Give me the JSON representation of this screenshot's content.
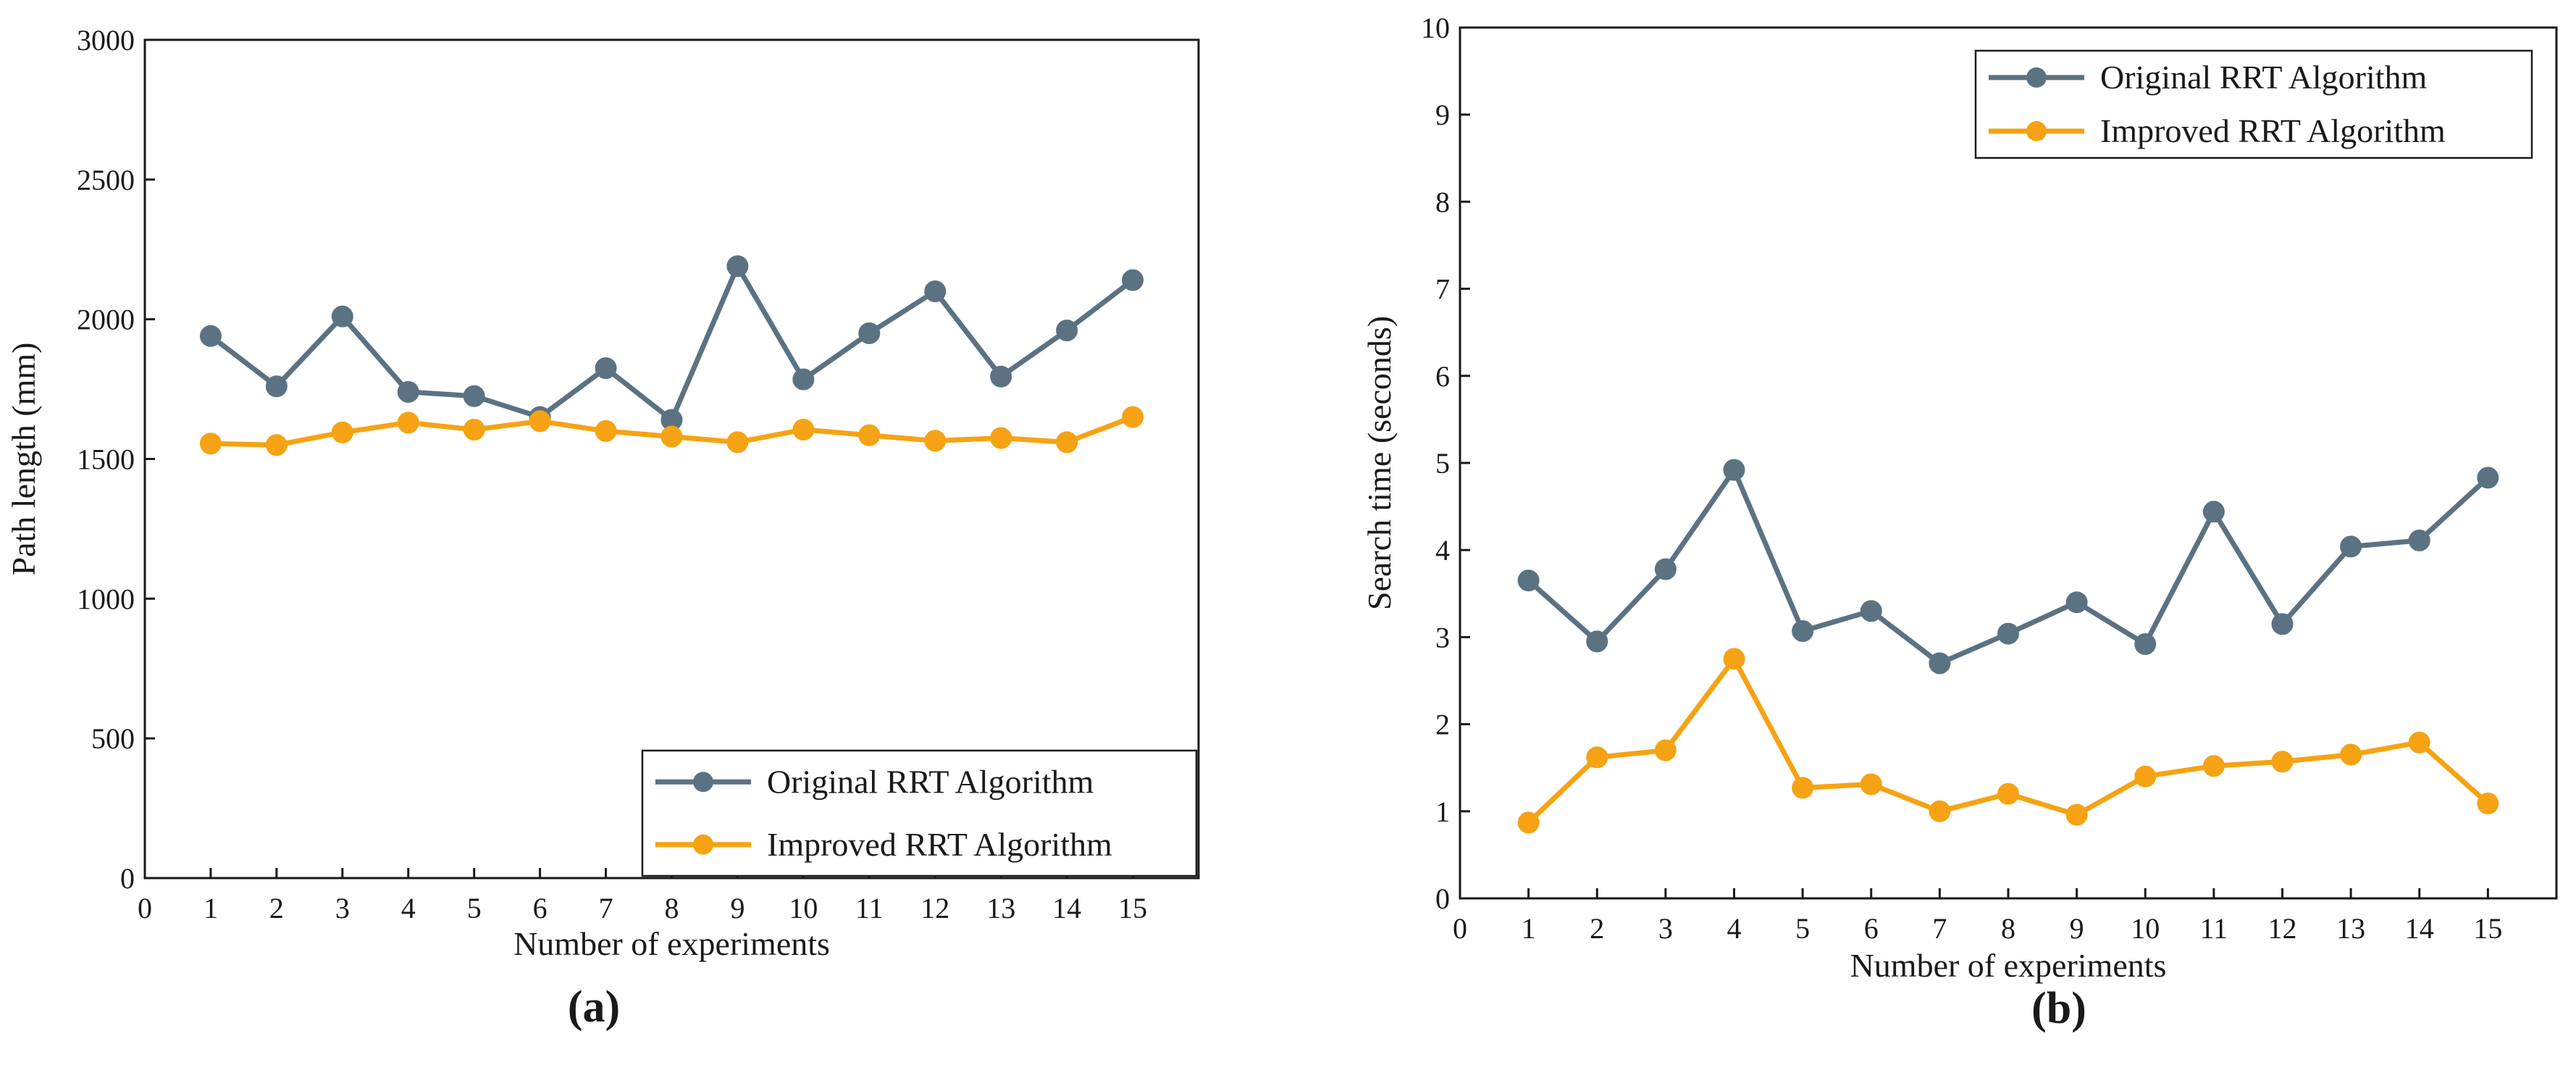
{
  "chart_data": [
    {
      "type": "line",
      "panel_label": "(a)",
      "title": "",
      "xlabel": "Number of experiments",
      "ylabel": "Path length (mm)",
      "xlim": [
        0,
        16
      ],
      "ylim": [
        0,
        3000
      ],
      "x_ticks": [
        0,
        1,
        2,
        3,
        4,
        5,
        6,
        7,
        8,
        9,
        10,
        11,
        12,
        13,
        14,
        15
      ],
      "y_ticks": [
        0,
        500,
        1000,
        1500,
        2000,
        2500,
        3000
      ],
      "grid": false,
      "legend_position": "bottom-right",
      "x": [
        1,
        2,
        3,
        4,
        5,
        6,
        7,
        8,
        9,
        10,
        11,
        12,
        13,
        14,
        15
      ],
      "series": [
        {
          "name": "Original RRT Algorithm",
          "color": "#5b7282",
          "values": [
            1940,
            1760,
            2010,
            1740,
            1725,
            1650,
            1825,
            1640,
            2190,
            1785,
            1950,
            2100,
            1795,
            1960,
            2140
          ]
        },
        {
          "name": "Improved RRT Algorithm",
          "color": "#f5a314",
          "values": [
            1555,
            1550,
            1595,
            1630,
            1605,
            1635,
            1600,
            1580,
            1560,
            1605,
            1585,
            1565,
            1575,
            1560,
            1650
          ]
        }
      ]
    },
    {
      "type": "line",
      "panel_label": "(b)",
      "title": "",
      "xlabel": "Number of experiments",
      "ylabel": "Search time (seconds)",
      "xlim": [
        0,
        16
      ],
      "ylim": [
        0,
        10
      ],
      "x_ticks": [
        0,
        1,
        2,
        3,
        4,
        5,
        6,
        7,
        8,
        9,
        10,
        11,
        12,
        13,
        14,
        15
      ],
      "y_ticks": [
        0,
        1,
        2,
        3,
        4,
        5,
        6,
        7,
        8,
        9,
        10
      ],
      "grid": false,
      "legend_position": "top-right",
      "x": [
        1,
        2,
        3,
        4,
        5,
        6,
        7,
        8,
        9,
        10,
        11,
        12,
        13,
        14,
        15
      ],
      "series": [
        {
          "name": "Original RRT Algorithm",
          "color": "#5b7282",
          "values": [
            3.65,
            2.95,
            3.78,
            4.92,
            3.07,
            3.3,
            2.7,
            3.04,
            3.4,
            2.92,
            4.44,
            3.15,
            4.04,
            4.11,
            4.83
          ]
        },
        {
          "name": "Improved RRT Algorithm",
          "color": "#f5a314",
          "values": [
            0.87,
            1.62,
            1.7,
            2.75,
            1.27,
            1.31,
            1.0,
            1.2,
            0.96,
            1.4,
            1.52,
            1.57,
            1.65,
            1.79,
            1.09
          ]
        }
      ]
    }
  ]
}
